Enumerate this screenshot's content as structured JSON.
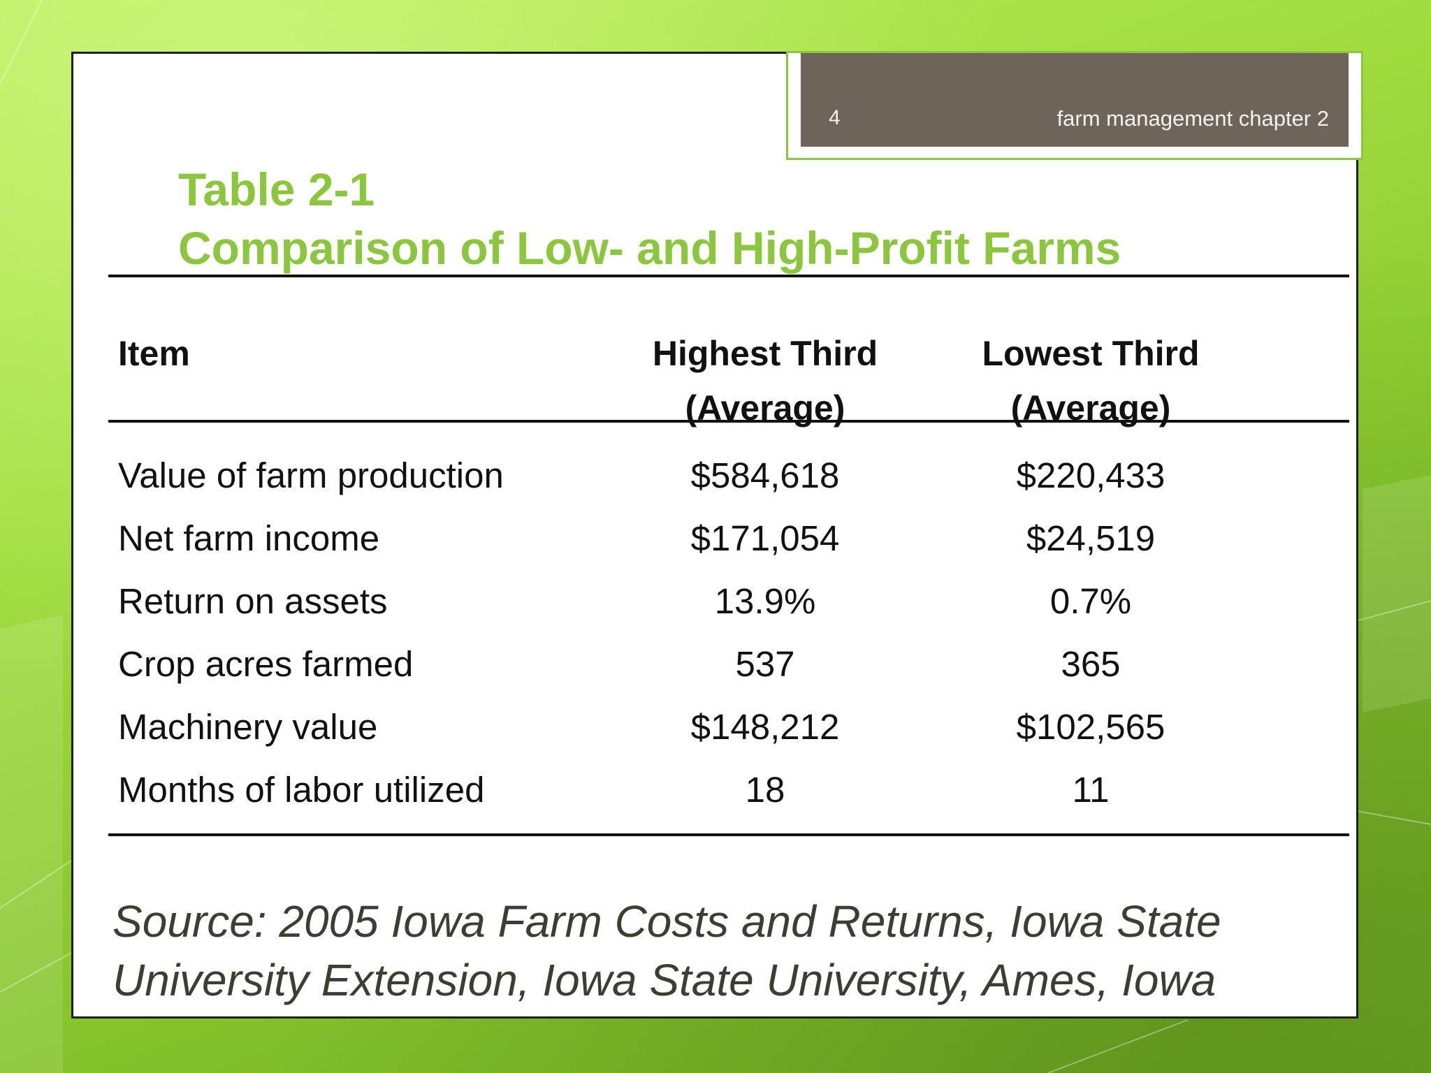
{
  "header": {
    "page_number": "4",
    "deck_title": "farm management chapter 2"
  },
  "title": {
    "line1": "Table 2-1",
    "line2": "Comparison of Low- and High-Profit Farms"
  },
  "table": {
    "columns": {
      "item": "Item",
      "highest_line1": "Highest Third",
      "highest_line2": "(Average)",
      "lowest_line1": "Lowest Third",
      "lowest_line2": "(Average)"
    },
    "rows": [
      {
        "item": "Value of farm production",
        "highest": "$584,618",
        "lowest": "$220,433"
      },
      {
        "item": "Net farm income",
        "highest": "$171,054",
        "lowest": "$24,519"
      },
      {
        "item": "Return on assets",
        "highest": "13.9%",
        "lowest": "0.7%"
      },
      {
        "item": "Crop acres farmed",
        "highest": "537",
        "lowest": "365"
      },
      {
        "item": "Machinery value",
        "highest": "$148,212",
        "lowest": "$102,565"
      },
      {
        "item": "Months of labor utilized",
        "highest": "18",
        "lowest": "11"
      }
    ]
  },
  "source": {
    "line1": "Source:  2005 Iowa Farm Costs and Returns, Iowa State",
    "line2": "University Extension, Iowa State University, Ames, Iowa"
  },
  "colors": {
    "accent_green": "#8cc63f",
    "header_brown": "#6e645a"
  }
}
